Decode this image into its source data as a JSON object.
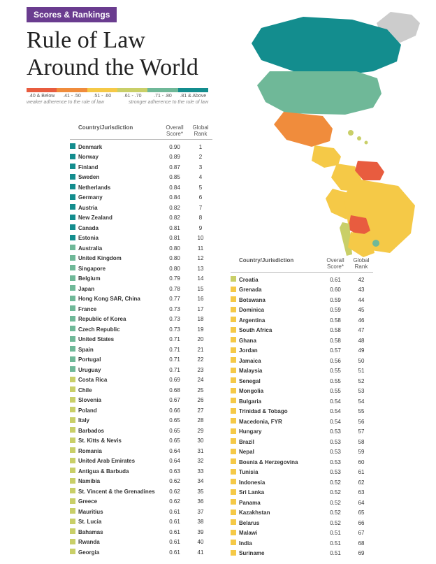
{
  "badge": "Scores & Rankings",
  "title_line1": "Rule of Law",
  "title_line2": "Around the World",
  "legend": {
    "bands": [
      {
        "color": "#e85c3f",
        "label": ".40 & Below"
      },
      {
        "color": "#f08c3c",
        "label": ".41 - .50"
      },
      {
        "color": "#f5c947",
        "label": ".51 - .60"
      },
      {
        "color": "#c9cf68",
        "label": ".61 - .70"
      },
      {
        "color": "#6fb898",
        "label": ".71 - .80"
      },
      {
        "color": "#138d8e",
        "label": ".81 & Above"
      }
    ],
    "weak_label": "weaker adherence to the rule of law",
    "strong_label": "stronger adherence to the rule of law"
  },
  "headers": {
    "country": "Country/Jurisdiction",
    "score": "Overall Score*",
    "rank": "Global Rank"
  },
  "rows1": [
    {
      "name": "Denmark",
      "score": "0.90",
      "rank": 1,
      "c": "#138d8e"
    },
    {
      "name": "Norway",
      "score": "0.89",
      "rank": 2,
      "c": "#138d8e"
    },
    {
      "name": "Finland",
      "score": "0.87",
      "rank": 3,
      "c": "#138d8e"
    },
    {
      "name": "Sweden",
      "score": "0.85",
      "rank": 4,
      "c": "#138d8e"
    },
    {
      "name": "Netherlands",
      "score": "0.84",
      "rank": 5,
      "c": "#138d8e"
    },
    {
      "name": "Germany",
      "score": "0.84",
      "rank": 6,
      "c": "#138d8e"
    },
    {
      "name": "Austria",
      "score": "0.82",
      "rank": 7,
      "c": "#138d8e"
    },
    {
      "name": "New Zealand",
      "score": "0.82",
      "rank": 8,
      "c": "#138d8e"
    },
    {
      "name": "Canada",
      "score": "0.81",
      "rank": 9,
      "c": "#138d8e"
    },
    {
      "name": "Estonia",
      "score": "0.81",
      "rank": 10,
      "c": "#138d8e"
    },
    {
      "name": "Australia",
      "score": "0.80",
      "rank": 11,
      "c": "#6fb898"
    },
    {
      "name": "United Kingdom",
      "score": "0.80",
      "rank": 12,
      "c": "#6fb898"
    },
    {
      "name": "Singapore",
      "score": "0.80",
      "rank": 13,
      "c": "#6fb898"
    },
    {
      "name": "Belgium",
      "score": "0.79",
      "rank": 14,
      "c": "#6fb898"
    },
    {
      "name": "Japan",
      "score": "0.78",
      "rank": 15,
      "c": "#6fb898"
    },
    {
      "name": "Hong Kong SAR, China",
      "score": "0.77",
      "rank": 16,
      "c": "#6fb898"
    },
    {
      "name": "France",
      "score": "0.73",
      "rank": 17,
      "c": "#6fb898"
    },
    {
      "name": "Republic of Korea",
      "score": "0.73",
      "rank": 18,
      "c": "#6fb898"
    },
    {
      "name": "Czech Republic",
      "score": "0.73",
      "rank": 19,
      "c": "#6fb898"
    },
    {
      "name": "United States",
      "score": "0.71",
      "rank": 20,
      "c": "#6fb898"
    },
    {
      "name": "Spain",
      "score": "0.71",
      "rank": 21,
      "c": "#6fb898"
    },
    {
      "name": "Portugal",
      "score": "0.71",
      "rank": 22,
      "c": "#6fb898"
    },
    {
      "name": "Uruguay",
      "score": "0.71",
      "rank": 23,
      "c": "#6fb898"
    },
    {
      "name": "Costa Rica",
      "score": "0.69",
      "rank": 24,
      "c": "#c9cf68"
    },
    {
      "name": "Chile",
      "score": "0.68",
      "rank": 25,
      "c": "#c9cf68"
    },
    {
      "name": "Slovenia",
      "score": "0.67",
      "rank": 26,
      "c": "#c9cf68"
    },
    {
      "name": "Poland",
      "score": "0.66",
      "rank": 27,
      "c": "#c9cf68"
    },
    {
      "name": "Italy",
      "score": "0.65",
      "rank": 28,
      "c": "#c9cf68"
    },
    {
      "name": "Barbados",
      "score": "0.65",
      "rank": 29,
      "c": "#c9cf68"
    },
    {
      "name": "St. Kitts & Nevis",
      "score": "0.65",
      "rank": 30,
      "c": "#c9cf68"
    },
    {
      "name": "Romania",
      "score": "0.64",
      "rank": 31,
      "c": "#c9cf68"
    },
    {
      "name": "United Arab Emirates",
      "score": "0.64",
      "rank": 32,
      "c": "#c9cf68"
    },
    {
      "name": "Antigua & Barbuda",
      "score": "0.63",
      "rank": 33,
      "c": "#c9cf68"
    },
    {
      "name": "Namibia",
      "score": "0.62",
      "rank": 34,
      "c": "#c9cf68"
    },
    {
      "name": "St. Vincent & the Grenadines",
      "score": "0.62",
      "rank": 35,
      "c": "#c9cf68"
    },
    {
      "name": "Greece",
      "score": "0.62",
      "rank": 36,
      "c": "#c9cf68"
    },
    {
      "name": "Mauritius",
      "score": "0.61",
      "rank": 37,
      "c": "#c9cf68"
    },
    {
      "name": "St. Lucia",
      "score": "0.61",
      "rank": 38,
      "c": "#c9cf68"
    },
    {
      "name": "Bahamas",
      "score": "0.61",
      "rank": 39,
      "c": "#c9cf68"
    },
    {
      "name": "Rwanda",
      "score": "0.61",
      "rank": 40,
      "c": "#c9cf68"
    },
    {
      "name": "Georgia",
      "score": "0.61",
      "rank": 41,
      "c": "#c9cf68"
    }
  ],
  "rows2": [
    {
      "name": "Croatia",
      "score": "0.61",
      "rank": 42,
      "c": "#c9cf68"
    },
    {
      "name": "Grenada",
      "score": "0.60",
      "rank": 43,
      "c": "#f5c947"
    },
    {
      "name": "Botswana",
      "score": "0.59",
      "rank": 44,
      "c": "#f5c947"
    },
    {
      "name": "Dominica",
      "score": "0.59",
      "rank": 45,
      "c": "#f5c947"
    },
    {
      "name": "Argentina",
      "score": "0.58",
      "rank": 46,
      "c": "#f5c947"
    },
    {
      "name": "South Africa",
      "score": "0.58",
      "rank": 47,
      "c": "#f5c947"
    },
    {
      "name": "Ghana",
      "score": "0.58",
      "rank": 48,
      "c": "#f5c947"
    },
    {
      "name": "Jordan",
      "score": "0.57",
      "rank": 49,
      "c": "#f5c947"
    },
    {
      "name": "Jamaica",
      "score": "0.56",
      "rank": 50,
      "c": "#f5c947"
    },
    {
      "name": "Malaysia",
      "score": "0.55",
      "rank": 51,
      "c": "#f5c947"
    },
    {
      "name": "Senegal",
      "score": "0.55",
      "rank": 52,
      "c": "#f5c947"
    },
    {
      "name": "Mongolia",
      "score": "0.55",
      "rank": 53,
      "c": "#f5c947"
    },
    {
      "name": "Bulgaria",
      "score": "0.54",
      "rank": 54,
      "c": "#f5c947"
    },
    {
      "name": "Trinidad & Tobago",
      "score": "0.54",
      "rank": 55,
      "c": "#f5c947"
    },
    {
      "name": "Macedonia, FYR",
      "score": "0.54",
      "rank": 56,
      "c": "#f5c947"
    },
    {
      "name": "Hungary",
      "score": "0.53",
      "rank": 57,
      "c": "#f5c947"
    },
    {
      "name": "Brazil",
      "score": "0.53",
      "rank": 58,
      "c": "#f5c947"
    },
    {
      "name": "Nepal",
      "score": "0.53",
      "rank": 59,
      "c": "#f5c947"
    },
    {
      "name": "Bosnia & Herzegovina",
      "score": "0.53",
      "rank": 60,
      "c": "#f5c947"
    },
    {
      "name": "Tunisia",
      "score": "0.53",
      "rank": 61,
      "c": "#f5c947"
    },
    {
      "name": "Indonesia",
      "score": "0.52",
      "rank": 62,
      "c": "#f5c947"
    },
    {
      "name": "Sri Lanka",
      "score": "0.52",
      "rank": 63,
      "c": "#f5c947"
    },
    {
      "name": "Panama",
      "score": "0.52",
      "rank": 64,
      "c": "#f5c947"
    },
    {
      "name": "Kazakhstan",
      "score": "0.52",
      "rank": 65,
      "c": "#f5c947"
    },
    {
      "name": "Belarus",
      "score": "0.52",
      "rank": 66,
      "c": "#f5c947"
    },
    {
      "name": "Malawi",
      "score": "0.51",
      "rank": 67,
      "c": "#f5c947"
    },
    {
      "name": "India",
      "score": "0.51",
      "rank": 68,
      "c": "#f5c947"
    },
    {
      "name": "Suriname",
      "score": "0.51",
      "rank": 69,
      "c": "#f5c947"
    }
  ],
  "map": {
    "colors": {
      "canada": "#138d8e",
      "usa": "#6fb898",
      "mexico": "#f08c3c",
      "centralamerica": "#f5c947",
      "colombia": "#f5c947",
      "venezuela": "#e85c3f",
      "brazil": "#f5c947",
      "argentina": "#f5c947",
      "chile": "#c9cf68",
      "peru": "#f5c947",
      "bolivia": "#e85c3f",
      "uruguay": "#6fb898",
      "greenland": "#cccccc",
      "caribbean": "#c9cf68"
    }
  }
}
